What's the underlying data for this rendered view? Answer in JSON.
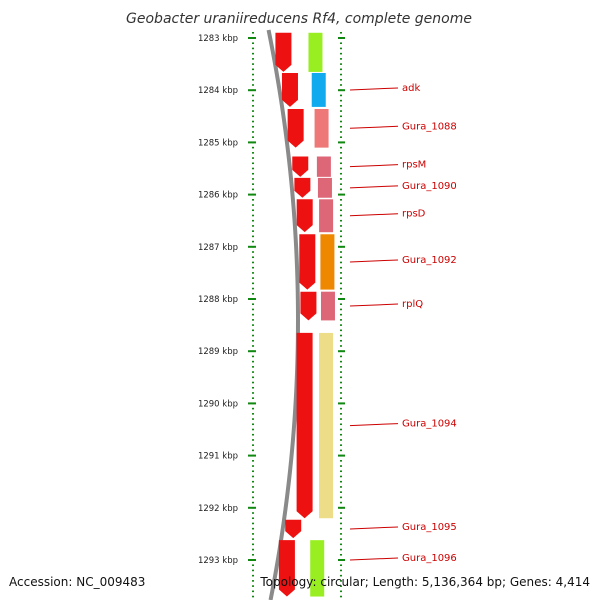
{
  "title": "Geobacter uraniireducens Rf4, complete genome",
  "footer": {
    "accession": "Accession: NC_009483",
    "topology": "Topology: circular; Length: 5,136,364 bp; Genes: 4,414"
  },
  "axis": {
    "unit": "kbp",
    "range_kbp": [
      1282.9,
      1293.7
    ],
    "ticks": [
      {
        "kbp": 1283,
        "label": "1283 kbp"
      },
      {
        "kbp": 1284,
        "label": "1284 kbp"
      },
      {
        "kbp": 1285,
        "label": "1285 kbp"
      },
      {
        "kbp": 1286,
        "label": "1286 kbp"
      },
      {
        "kbp": 1287,
        "label": "1287 kbp"
      },
      {
        "kbp": 1288,
        "label": "1288 kbp"
      },
      {
        "kbp": 1289,
        "label": "1289 kbp"
      },
      {
        "kbp": 1290,
        "label": "1290 kbp"
      },
      {
        "kbp": 1291,
        "label": "1291 kbp"
      },
      {
        "kbp": 1292,
        "label": "1292 kbp"
      },
      {
        "kbp": 1293,
        "label": "1293 kbp"
      }
    ]
  },
  "colors": {
    "cds": "#ee1111",
    "backbone": "#8a8a8a",
    "tick": "#118811",
    "label": "#cc0000",
    "leader_line": "#cc0000"
  },
  "genes": [
    {
      "name": "",
      "start": 1282.9,
      "end": 1283.65,
      "color": "#99ee22"
    },
    {
      "name": "adk",
      "start": 1283.67,
      "end": 1284.32,
      "color": "#11aaee"
    },
    {
      "name": "Gura_1088",
      "start": 1284.36,
      "end": 1285.1,
      "color": "#ee7777"
    },
    {
      "name": "rpsM",
      "start": 1285.27,
      "end": 1285.66,
      "color": "#dd6677"
    },
    {
      "name": "Gura_1090",
      "start": 1285.68,
      "end": 1286.06,
      "color": "#dd6677"
    },
    {
      "name": "rpsD",
      "start": 1286.09,
      "end": 1286.72,
      "color": "#dd6677"
    },
    {
      "name": "Gura_1092",
      "start": 1286.76,
      "end": 1287.82,
      "color": "#ee8800"
    },
    {
      "name": "rplQ",
      "start": 1287.86,
      "end": 1288.41,
      "color": "#dd6677"
    },
    {
      "name": "Gura_1094",
      "start": 1288.65,
      "end": 1292.2,
      "color": "#eedd88"
    },
    {
      "name": "Gura_1095",
      "start": 1292.23,
      "end": 1292.58,
      "color": "#ffffff"
    },
    {
      "name": "Gura_1096",
      "start": 1292.62,
      "end": 1293.7,
      "color": "#99ee22"
    }
  ]
}
